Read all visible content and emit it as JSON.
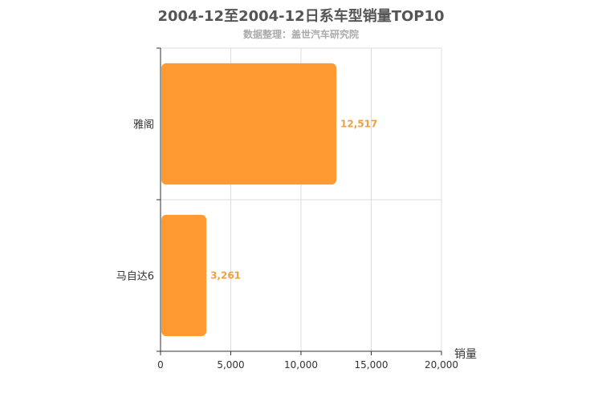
{
  "chart_data": {
    "type": "bar",
    "orientation": "horizontal",
    "title": "2004-12至2004-12日系车型销量TOP10",
    "subtitle": "数据整理：盖世汽车研究院",
    "categories": [
      "雅阁",
      "马自达6"
    ],
    "values": [
      12517,
      3261
    ],
    "value_labels": [
      "12,517",
      "3,261"
    ],
    "xlabel": "销量",
    "ylabel": "",
    "xlim": [
      0,
      20000
    ],
    "x_ticks": [
      0,
      5000,
      10000,
      15000,
      20000
    ],
    "x_tick_labels": [
      "0",
      "5,000",
      "10,000",
      "15,000",
      "20,000"
    ],
    "grid": true,
    "legend": "none",
    "colors": {
      "bar": "#ff9a33",
      "value_label": "#f0a040",
      "grid": "#dddddd",
      "axis": "#333333",
      "title": "#555555",
      "subtitle": "#aaaaaa"
    }
  }
}
